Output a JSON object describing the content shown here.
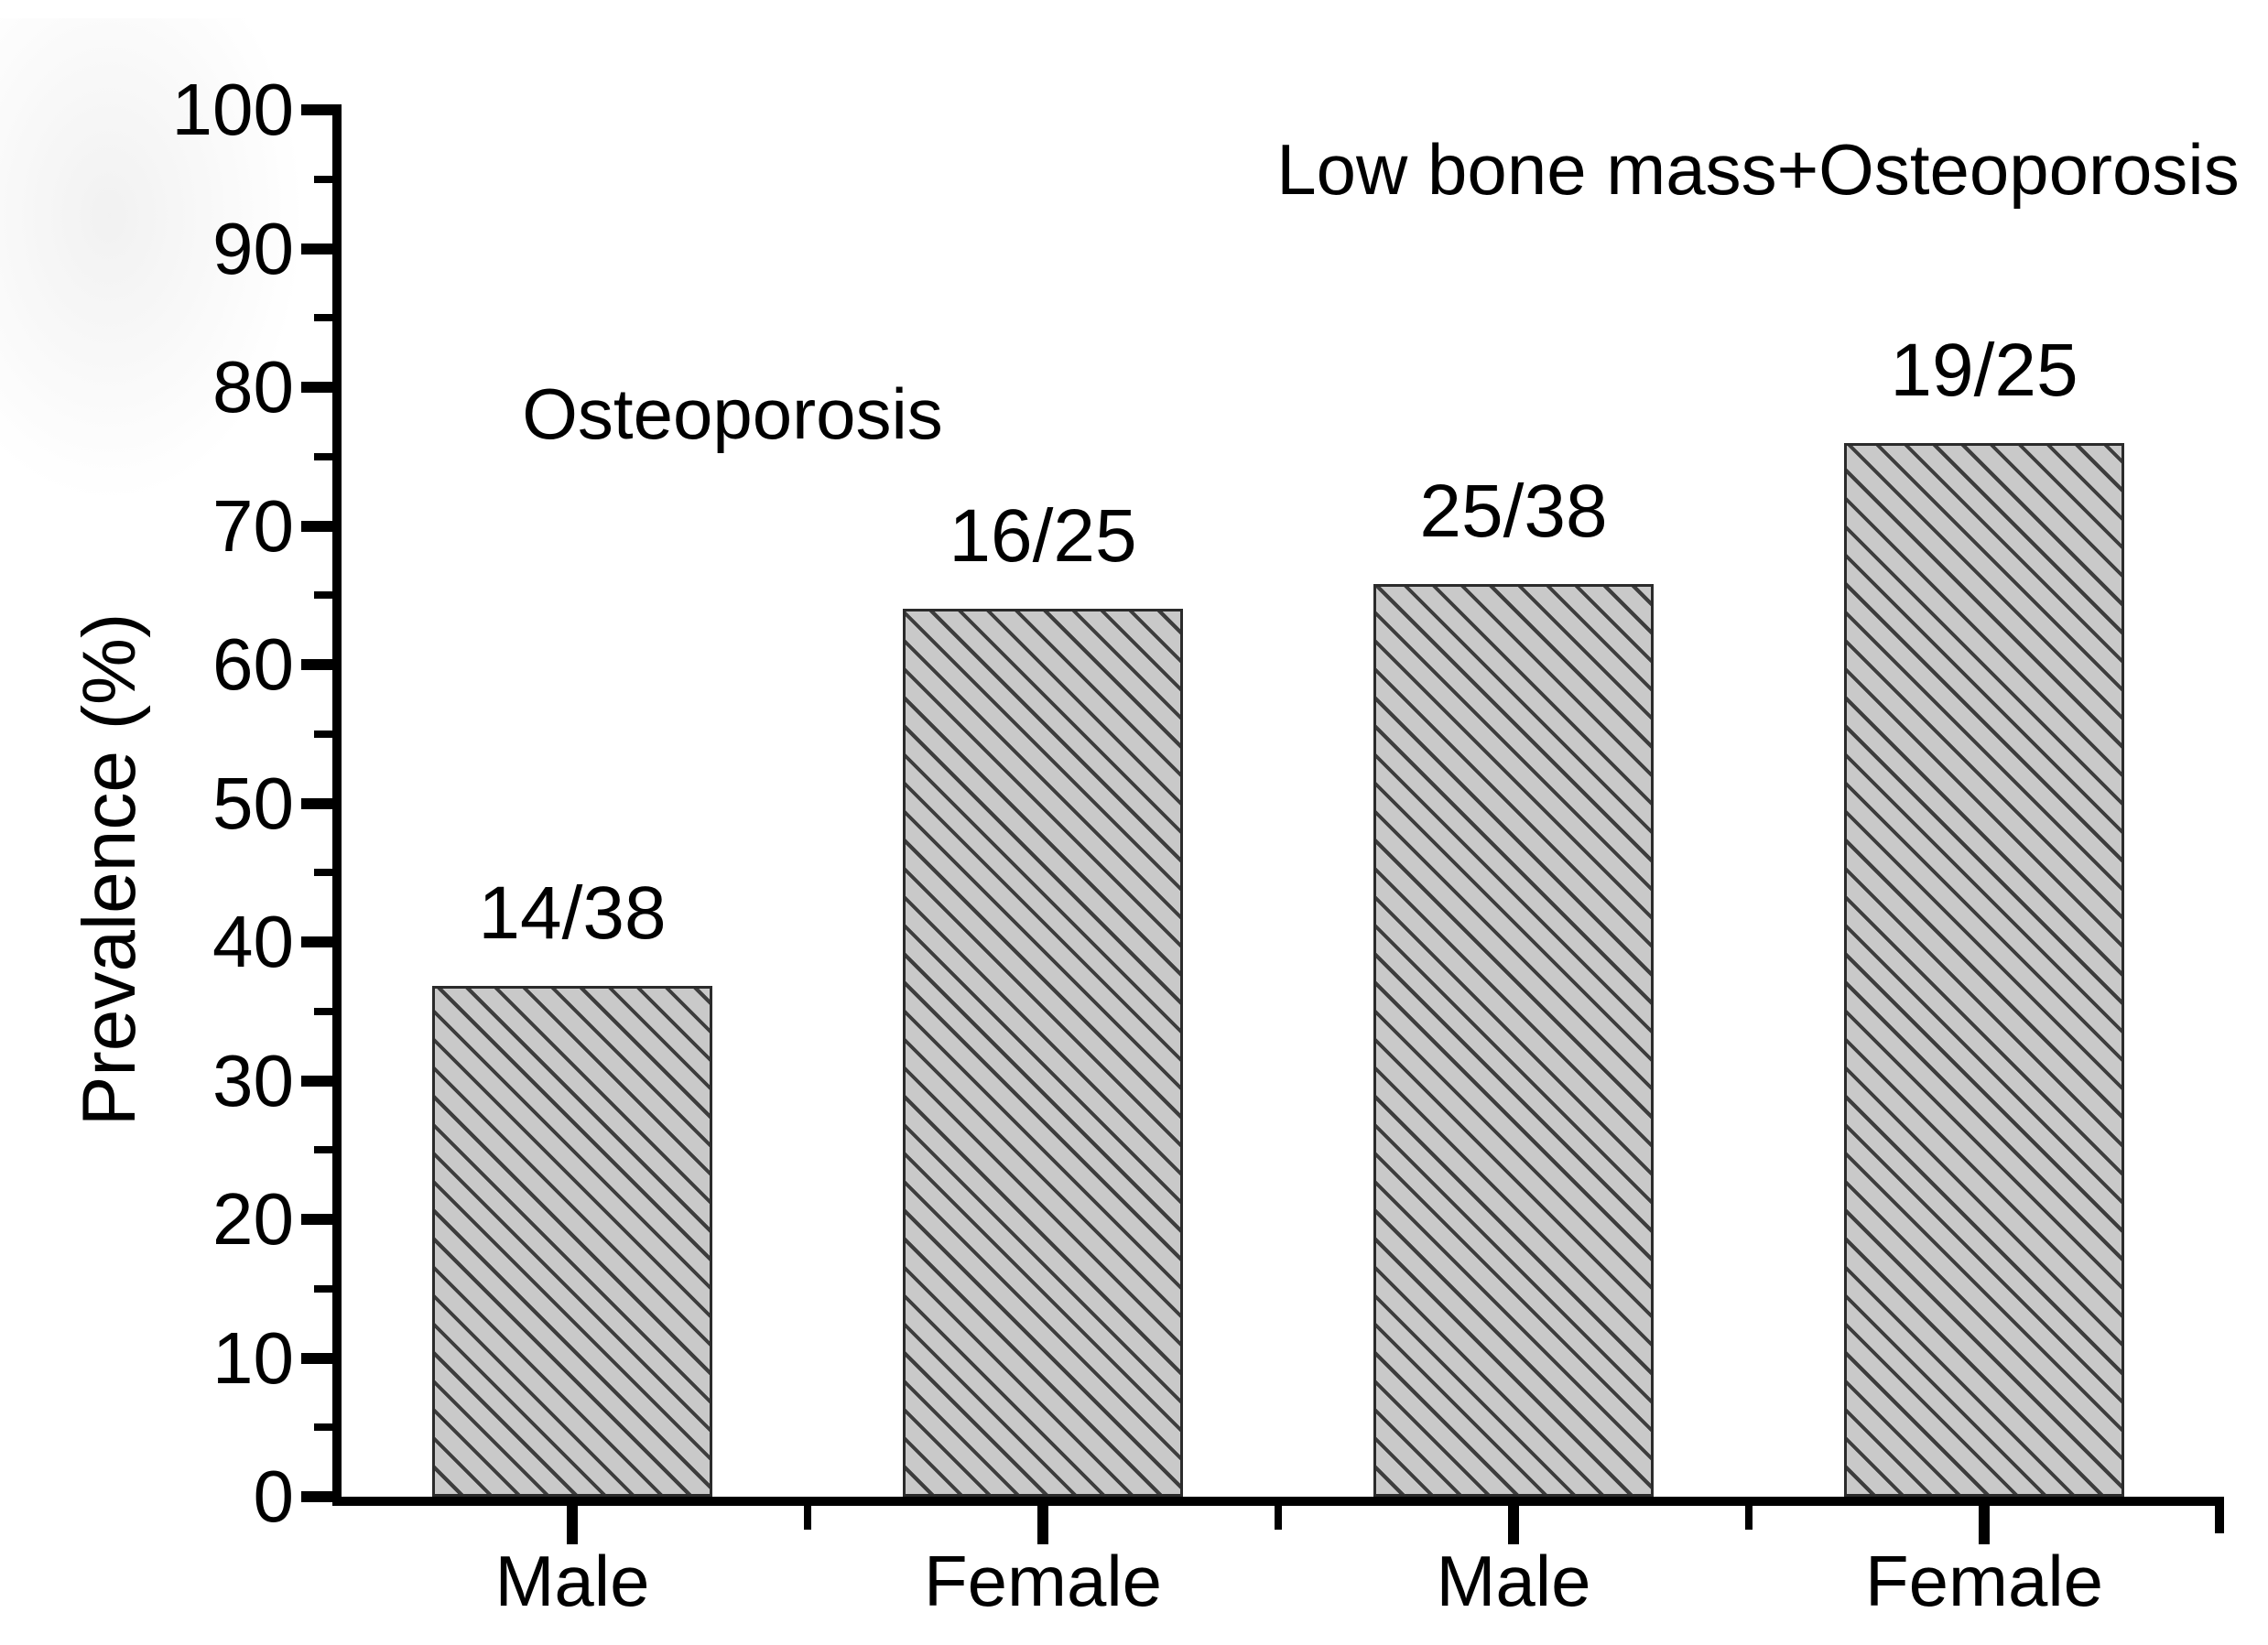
{
  "chart_data": {
    "type": "bar",
    "title": "",
    "xlabel": "",
    "ylabel": "Prevalence (%)",
    "ylim": [
      0,
      100
    ],
    "ytick_major_step": 10,
    "ytick_minor_step": 5,
    "grid": false,
    "legend": false,
    "hatch_style": "diagonal-backslash",
    "group_labels": [
      "Osteoporosis",
      "Low bone mass+Osteoporosis"
    ],
    "categories": [
      "Male",
      "Female",
      "Male",
      "Female"
    ],
    "bars": [
      {
        "category": "Male",
        "group": "Osteoporosis",
        "fraction_label": "14/38",
        "value_percent": 36.8
      },
      {
        "category": "Female",
        "group": "Osteoporosis",
        "fraction_label": "16/25",
        "value_percent": 64.0
      },
      {
        "category": "Male",
        "group": "Low bone mass+Osteoporosis",
        "fraction_label": "25/38",
        "value_percent": 65.8
      },
      {
        "category": "Female",
        "group": "Low bone mass+Osteoporosis",
        "fraction_label": "19/25",
        "value_percent": 76.0
      }
    ],
    "colors": {
      "bar_fill": "#c9c9c9",
      "hatch_line": "#3d3d3d",
      "bar_border": "#2b2b2b",
      "axis": "#000000",
      "text": "#000000",
      "background": "#ffffff"
    }
  }
}
